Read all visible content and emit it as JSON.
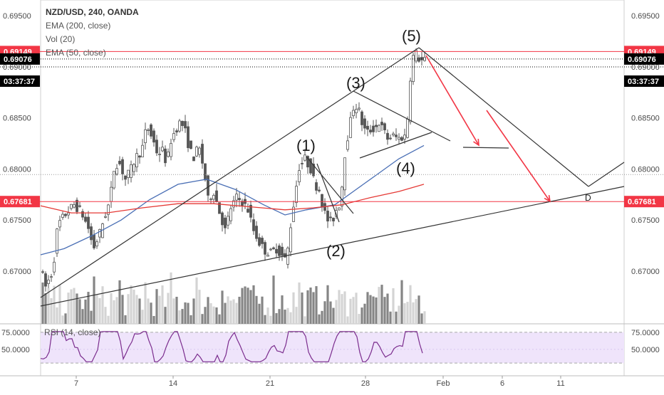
{
  "header": {
    "title": "NZD/USD, 240, OANDA",
    "indicators": [
      "EMA (200, close)",
      "Vol (20)",
      "EMA (50, close)"
    ]
  },
  "chart_data": {
    "type": "candlestick",
    "symbol": "NZD/USD",
    "interval": "240",
    "source": "OANDA",
    "price_axis": {
      "ticks": [
        "0.69500",
        "0.69000",
        "0.68500",
        "0.68000",
        "0.67500",
        "0.67000"
      ],
      "ylim": [
        0.6645,
        0.6962
      ]
    },
    "time_axis": {
      "ticks": [
        "7",
        "14",
        "21",
        "28",
        "Feb",
        "6",
        "11"
      ]
    },
    "price_tags": [
      {
        "value": "0.69149",
        "color": "#f23645",
        "side": "both"
      },
      {
        "value": "0.69076",
        "color": "#000000",
        "side": "both"
      },
      {
        "value": "03:37:37",
        "color": "#000000",
        "side": "both"
      },
      {
        "value": "0.67681",
        "color": "#f23645",
        "side": "both"
      }
    ],
    "horizontal_levels": [
      {
        "price": 0.69149,
        "color": "#f23645",
        "style": "solid"
      },
      {
        "price": 0.67681,
        "color": "#f23645",
        "style": "solid"
      },
      {
        "price": 0.69076,
        "color": "#000000",
        "style": "dotted"
      },
      {
        "price": 0.68999,
        "color": "#000000",
        "style": "dotted"
      },
      {
        "price": 0.67945,
        "color": "#999999",
        "style": "dotted"
      }
    ],
    "wave_labels": [
      "(1)",
      "(2)",
      "(3)",
      "(4)",
      "(5)"
    ],
    "projection_label": "D",
    "rsi": {
      "label": "RSI (14, close)",
      "ticks": [
        "75.0000",
        "50.0000"
      ],
      "ylim": [
        25,
        80
      ]
    },
    "colors": {
      "candle": "#555555",
      "ema50": "#4a6fb5",
      "ema200": "#e53935",
      "rsi_line": "#7b2d8e",
      "rsi_band": "#efe4fb",
      "volume_dark": "#858585",
      "volume_light": "#d4d4d4",
      "arrow": "#f23645"
    }
  }
}
